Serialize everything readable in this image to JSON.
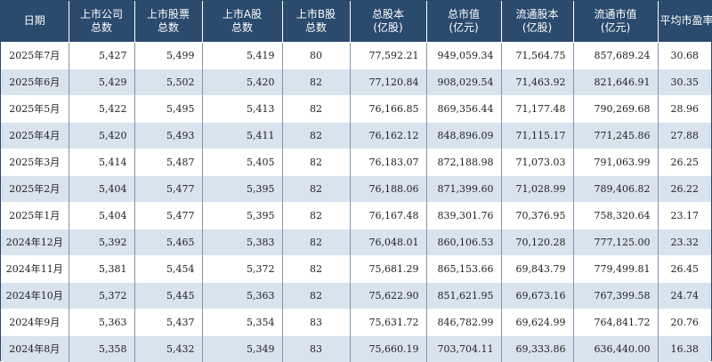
{
  "colors": {
    "header_bg": "#2a4a6e",
    "row_odd_bg": "#ffffff",
    "row_even_bg": "#d8e3ee",
    "text": "#222222"
  },
  "table": {
    "headers": [
      [
        "日期",
        ""
      ],
      [
        "上市公司",
        "总数"
      ],
      [
        "上市股票",
        "总数"
      ],
      [
        "上市A股",
        "总数"
      ],
      [
        "上市B股",
        "总数"
      ],
      [
        "总股本",
        "(亿股)"
      ],
      [
        "总市值",
        "(亿元)"
      ],
      [
        "流通股本",
        "(亿股)"
      ],
      [
        "流通市值",
        "(亿元)"
      ],
      [
        "平均市盈率",
        ""
      ]
    ],
    "rows": [
      [
        "2025年7月",
        "5,427",
        "5,499",
        "5,419",
        "80",
        "77,592.21",
        "949,059.34",
        "71,564.75",
        "857,689.24",
        "30.68"
      ],
      [
        "2025年6月",
        "5,429",
        "5,502",
        "5,420",
        "82",
        "77,120.84",
        "908,029.54",
        "71,463.92",
        "821,646.91",
        "30.35"
      ],
      [
        "2025年5月",
        "5,422",
        "5,495",
        "5,413",
        "82",
        "76,166.85",
        "869,356.44",
        "71,177.48",
        "790,269.68",
        "28.96"
      ],
      [
        "2025年4月",
        "5,420",
        "5,493",
        "5,411",
        "82",
        "76,162.12",
        "848,896.09",
        "71,115.17",
        "771,245.86",
        "27.88"
      ],
      [
        "2025年3月",
        "5,414",
        "5,487",
        "5,405",
        "82",
        "76,183.07",
        "872,188.98",
        "71,073.03",
        "791,063.99",
        "26.25"
      ],
      [
        "2025年2月",
        "5,404",
        "5,477",
        "5,395",
        "82",
        "76,188.06",
        "871,399.60",
        "71,028.99",
        "789,406.82",
        "26.22"
      ],
      [
        "2025年1月",
        "5,404",
        "5,477",
        "5,395",
        "82",
        "76,167.48",
        "839,301.76",
        "70,376.95",
        "758,320.64",
        "23.17"
      ],
      [
        "2024年12月",
        "5,392",
        "5,465",
        "5,383",
        "82",
        "76,048.01",
        "860,106.53",
        "70,120.28",
        "777,125.00",
        "23.32"
      ],
      [
        "2024年11月",
        "5,381",
        "5,454",
        "5,372",
        "82",
        "75,681.29",
        "865,153.66",
        "69,843.79",
        "779,499.81",
        "26.45"
      ],
      [
        "2024年10月",
        "5,372",
        "5,445",
        "5,363",
        "82",
        "75,622.90",
        "851,621.95",
        "69,673.16",
        "767,399.58",
        "24.74"
      ],
      [
        "2024年9月",
        "5,363",
        "5,437",
        "5,354",
        "83",
        "75,631.72",
        "846,782.99",
        "69,624.99",
        "764,841.72",
        "20.76"
      ],
      [
        "2024年8月",
        "5,358",
        "5,432",
        "5,349",
        "83",
        "75,660.19",
        "703,704.11",
        "69,333.86",
        "636,440.00",
        "16.38"
      ]
    ]
  }
}
